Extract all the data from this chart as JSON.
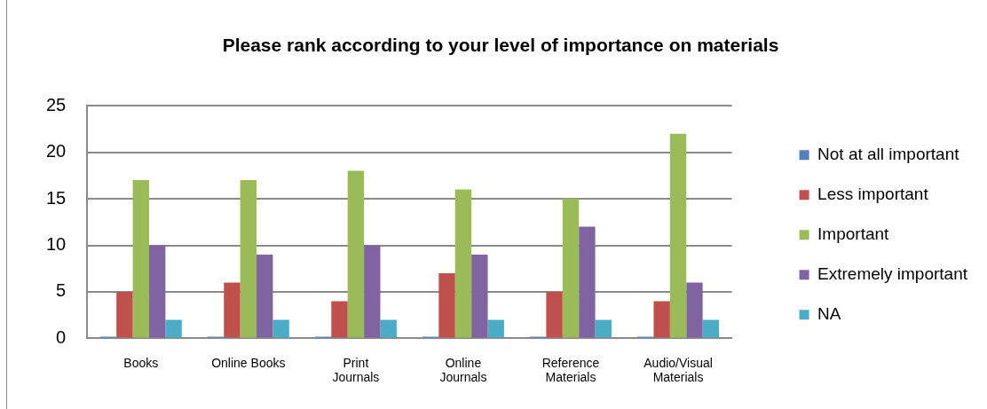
{
  "chart_data": {
    "type": "bar",
    "title": "Please rank according to your level of importance on materials",
    "categories": [
      "Books",
      "Online Books",
      "Print Journals",
      "Online Journals",
      "Reference Materials",
      "Audio/Visual Materials"
    ],
    "series": [
      {
        "name": "Not at all important",
        "color": "#4f81bd",
        "values": [
          0,
          0,
          0,
          0,
          0,
          0
        ]
      },
      {
        "name": "Less important",
        "color": "#c0504d",
        "values": [
          5,
          6,
          4,
          7,
          5,
          4
        ]
      },
      {
        "name": "Important",
        "color": "#9bbb59",
        "values": [
          17,
          17,
          18,
          16,
          15,
          22
        ]
      },
      {
        "name": "Extremely important",
        "color": "#8064a2",
        "values": [
          10,
          9,
          10,
          9,
          12,
          6
        ]
      },
      {
        "name": "NA",
        "color": "#4bacc6",
        "values": [
          2,
          2,
          2,
          2,
          2,
          2
        ]
      }
    ],
    "ylim": [
      0,
      25
    ],
    "yticks": [
      0,
      5,
      10,
      15,
      20,
      25
    ],
    "grid": "y",
    "legend": "right"
  }
}
